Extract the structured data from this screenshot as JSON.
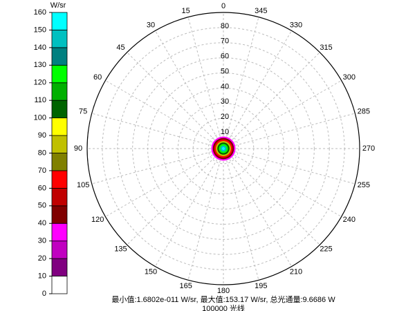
{
  "chart_data": {
    "type": "polar_intensity",
    "colorbar": {
      "label": "W/sr",
      "ticks": [
        0,
        10,
        20,
        30,
        40,
        50,
        60,
        70,
        80,
        90,
        100,
        110,
        120,
        130,
        140,
        150,
        160
      ],
      "colors": [
        "#ffffff",
        "#800080",
        "#c000c0",
        "#ff00ff",
        "#800000",
        "#c00000",
        "#ff0000",
        "#808000",
        "#c0c000",
        "#ffff00",
        "#006400",
        "#00b000",
        "#00ff00",
        "#008080",
        "#00c0c0",
        "#00ffff"
      ]
    },
    "rlim": [
      0,
      90
    ],
    "rticks": [
      10,
      20,
      30,
      40,
      50,
      60,
      70,
      80
    ],
    "thetaticks": [
      0,
      15,
      30,
      45,
      60,
      75,
      90,
      105,
      120,
      135,
      150,
      165,
      180,
      195,
      210,
      225,
      240,
      255,
      270,
      285,
      300,
      315,
      330,
      345
    ],
    "grid": true,
    "profile": {
      "x": [
        8,
        7,
        6,
        5,
        4,
        3,
        2,
        1
      ],
      "values": [
        35,
        48,
        60,
        85,
        100,
        125,
        140,
        153.17
      ]
    },
    "footer": [
      "最小值:1.6802e-011 W/sr, 最大值:153.17 W/sr, 总光通量:9.6686 W",
      "100000 光线"
    ]
  }
}
